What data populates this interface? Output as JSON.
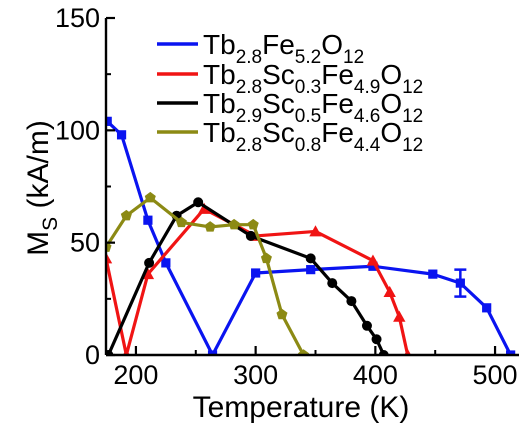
{
  "chart_data": {
    "type": "line",
    "xlabel": "Temperature (K)",
    "ylabel": {
      "main": "M",
      "sub": "S",
      "rest": " (kA/m)"
    },
    "xlim": [
      175,
      520
    ],
    "ylim": [
      0,
      150
    ],
    "xticks": [
      200,
      300,
      400,
      500
    ],
    "yticks": [
      0,
      50,
      100,
      150
    ],
    "grid": false,
    "legend_position": "top-right",
    "series": [
      {
        "name": "Tb2.8Fe5.2O12",
        "legend_parts": [
          {
            "t": "Tb",
            "sub": false
          },
          {
            "t": "2.8",
            "sub": true
          },
          {
            "t": "Fe",
            "sub": false
          },
          {
            "t": "5.2",
            "sub": true
          },
          {
            "t": "O",
            "sub": false
          },
          {
            "t": "12",
            "sub": true
          }
        ],
        "color": "#0a14f0",
        "marker": "square",
        "x": [
          176,
          188,
          210,
          225,
          264,
          300,
          346,
          398,
          448,
          471,
          493,
          513
        ],
        "y": [
          104,
          98,
          60,
          41,
          0,
          36.5,
          38,
          39.5,
          36,
          32,
          21,
          0
        ],
        "error_bar": {
          "x": 471,
          "y": 32,
          "err": 6
        }
      },
      {
        "name": "Tb2.8Sc0.3Fe4.9O12",
        "legend_parts": [
          {
            "t": "Tb",
            "sub": false
          },
          {
            "t": "2.8",
            "sub": true
          },
          {
            "t": "Sc",
            "sub": false
          },
          {
            "t": "0.3",
            "sub": true
          },
          {
            "t": "Fe",
            "sub": false
          },
          {
            "t": "4.9",
            "sub": true
          },
          {
            "t": "O",
            "sub": false
          },
          {
            "t": "12",
            "sub": true
          }
        ],
        "color": "#f01414",
        "marker": "triangle",
        "x": [
          175,
          192,
          210,
          257,
          300,
          350,
          398,
          412,
          420,
          427
        ],
        "y": [
          43,
          0,
          36,
          65,
          53,
          55,
          42,
          28,
          17,
          0
        ]
      },
      {
        "name": "Tb2.9Sc0.5Fe4.6O12",
        "legend_parts": [
          {
            "t": "Tb",
            "sub": false
          },
          {
            "t": "2.9",
            "sub": true
          },
          {
            "t": "Sc",
            "sub": false
          },
          {
            "t": "0.5",
            "sub": true
          },
          {
            "t": "Fe",
            "sub": false
          },
          {
            "t": "4.6",
            "sub": true
          },
          {
            "t": "O",
            "sub": false
          },
          {
            "t": "12",
            "sub": true
          }
        ],
        "color": "#000000",
        "marker": "circle",
        "x": [
          177,
          211,
          234,
          252,
          296,
          346,
          364,
          380,
          393,
          401,
          407
        ],
        "y": [
          0,
          41,
          62,
          68,
          53,
          43,
          32,
          24,
          13,
          7,
          0
        ]
      },
      {
        "name": "Tb2.8Sc0.8Fe4.4O12",
        "legend_parts": [
          {
            "t": "Tb",
            "sub": false
          },
          {
            "t": "2.8",
            "sub": true
          },
          {
            "t": "Sc",
            "sub": false
          },
          {
            "t": "0.8",
            "sub": true
          },
          {
            "t": "Fe",
            "sub": false
          },
          {
            "t": "4.4",
            "sub": true
          },
          {
            "t": "O",
            "sub": false
          },
          {
            "t": "12",
            "sub": true
          }
        ],
        "color": "#8c8a14",
        "marker": "pentagon",
        "x": [
          175,
          192,
          212,
          238,
          262,
          282,
          298,
          309,
          322,
          340
        ],
        "y": [
          48,
          62,
          70,
          59,
          57,
          58,
          58,
          43,
          18,
          0
        ]
      }
    ]
  }
}
